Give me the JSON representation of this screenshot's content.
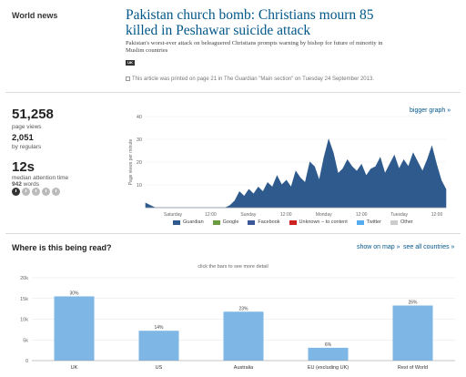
{
  "header": {
    "section": "World news",
    "headline": "Pakistan church bomb: Christians mourn 85 killed in Peshawar suicide attack",
    "standfirst": "Pakistan's worst-ever attack on beleaguered Christians prompts warning by bishop for future of minority in Muslim countries",
    "tag": "UK",
    "print_info": "This article was printed on page 21 in The Guardian \"Main section\" on Tuesday 24 September 2013."
  },
  "stats": {
    "page_views": "51,258",
    "page_views_label": "page views",
    "regulars": "2,051",
    "regulars_label": "by regulars",
    "attention": "12s",
    "attention_label": "median attention time",
    "words": "942",
    "words_label": "words",
    "time_icons": [
      "clock-icon",
      "clock-icon",
      "clock-icon",
      "clock-icon",
      "clock-icon"
    ],
    "active_time_icon": 0
  },
  "links": {
    "bigger_graph": "bigger graph »",
    "show_on_map": "show on map »",
    "see_all_countries": "see all countries »"
  },
  "read_section": {
    "title": "Where is this being read?",
    "hint": "click the bars to see more detail"
  },
  "chart_data": [
    {
      "type": "area",
      "ylabel": "Page views per minute",
      "ylim": [
        0,
        40
      ],
      "yticks": [
        "40",
        "30",
        "20",
        "10"
      ],
      "xticks": [
        "Saturday",
        "12:00",
        "Sunday",
        "12:00",
        "Monday",
        "12:00",
        "Tuesday",
        "12:00"
      ],
      "x": [
        0,
        2,
        4,
        6,
        8,
        10,
        12,
        14,
        16,
        18,
        20,
        22,
        24,
        26,
        28,
        30,
        32,
        34,
        36,
        38,
        40,
        42,
        44,
        46,
        48,
        50,
        52,
        54,
        56,
        58,
        60,
        62,
        64,
        66,
        68,
        70,
        72,
        74,
        76,
        78,
        80,
        82,
        84,
        86,
        88,
        90,
        92,
        94,
        96,
        98,
        100,
        102,
        104,
        106,
        108,
        110,
        112,
        114,
        116,
        118,
        120,
        122,
        124,
        126,
        128
      ],
      "series": [
        {
          "name": "Guardian",
          "color": "#2f5a8e",
          "values": [
            2,
            1,
            0,
            0,
            0,
            0,
            0,
            0,
            0,
            0,
            0,
            0,
            0,
            0,
            0,
            0,
            0,
            0,
            1,
            3,
            7,
            5,
            8,
            6,
            9,
            7,
            11,
            9,
            14,
            10,
            12,
            9,
            16,
            13,
            11,
            20,
            18,
            12,
            22,
            30,
            24,
            15,
            17,
            21,
            18,
            16,
            19,
            14,
            17,
            18,
            22,
            15,
            19,
            23,
            17,
            21,
            18,
            24,
            20,
            16,
            21,
            27,
            19,
            12,
            8
          ]
        }
      ],
      "legend": [
        "Guardian",
        "Google",
        "Facebook",
        "Unknown – to content",
        "Twitter",
        "Other"
      ],
      "legend_colors": [
        "#2f5a8e",
        "#6a9b3e",
        "#3b5998",
        "#cc2222",
        "#55acee",
        "#cccccc"
      ],
      "legend_placement": "bottom"
    },
    {
      "type": "bar",
      "categories": [
        "UK",
        "US",
        "Australia",
        "EU (excluding UK)",
        "Rest of World"
      ],
      "values": [
        15500,
        7200,
        11800,
        3100,
        13300
      ],
      "data_labels": [
        "30%",
        "14%",
        "23%",
        "6%",
        "26%"
      ],
      "yticks": [
        "0",
        "5k",
        "10k",
        "15k",
        "20k"
      ],
      "ylim": [
        0,
        20000
      ],
      "color": "#7eb6e5"
    }
  ]
}
